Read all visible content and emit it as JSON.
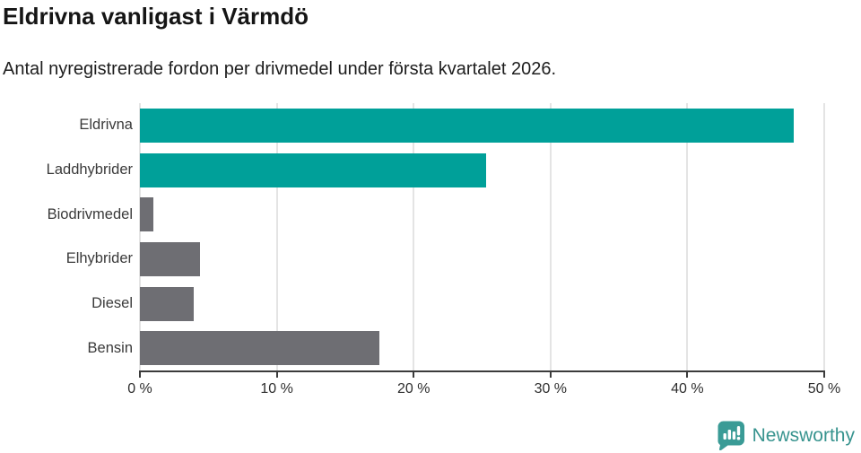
{
  "header": {
    "title": "Eldrivna vanligast i Värmdö",
    "subtitle": "Antal nyregistrerade fordon per drivmedel under första kvartalet 2026."
  },
  "chart_data": {
    "type": "bar",
    "orientation": "horizontal",
    "title": "Eldrivna vanligast i Värmdö",
    "subtitle": "Antal nyregistrerade fordon per drivmedel under första kvartalet 2026.",
    "categories": [
      "Eldrivna",
      "Laddhybrider",
      "Biodrivmedel",
      "Elhybrider",
      "Diesel",
      "Bensin"
    ],
    "values": [
      47.8,
      25.3,
      1.0,
      4.4,
      3.9,
      17.5
    ],
    "unit": "%",
    "xlabel": "",
    "ylabel": "",
    "xlim": [
      0,
      50
    ],
    "x_ticks": [
      0,
      10,
      20,
      30,
      40,
      50
    ],
    "x_tick_labels": [
      "0 %",
      "10 %",
      "20 %",
      "30 %",
      "40 %",
      "50 %"
    ],
    "bar_colors": [
      "#00a099",
      "#00a099",
      "#6e6e73",
      "#6e6e73",
      "#6e6e73",
      "#6e6e73"
    ],
    "grid": true,
    "legend": "none"
  },
  "colors": {
    "accent_teal": "#00a099",
    "neutral_gray": "#6e6e73",
    "gridline": "#e4e4e4",
    "axis": "#3b3b3b",
    "logo_teal": "#3a9b96"
  },
  "branding": {
    "logo_text": "Newsworthy",
    "logo_icon": "newsworthy-speech-bubble-bar-chart-icon"
  }
}
